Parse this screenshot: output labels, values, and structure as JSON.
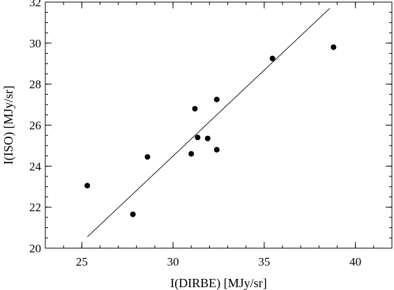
{
  "chart_data": {
    "type": "scatter",
    "title": "",
    "xlabel": "I(DIRBE) [MJy/sr]",
    "ylabel": "I(ISO) [MJy/sr]",
    "xlim": [
      23.0,
      42.0
    ],
    "ylim": [
      20.0,
      32.0
    ],
    "x_ticks": [
      25,
      30,
      35,
      40
    ],
    "y_ticks": [
      20,
      22,
      24,
      26,
      28,
      30,
      32
    ],
    "x_minor_step": 1,
    "y_minor_step": 0.5,
    "grid": false,
    "points": [
      {
        "x": 25.3,
        "y": 23.05
      },
      {
        "x": 27.8,
        "y": 21.65
      },
      {
        "x": 28.6,
        "y": 24.45
      },
      {
        "x": 31.0,
        "y": 24.6
      },
      {
        "x": 31.2,
        "y": 26.8
      },
      {
        "x": 31.35,
        "y": 25.4
      },
      {
        "x": 31.9,
        "y": 25.35
      },
      {
        "x": 32.4,
        "y": 27.25
      },
      {
        "x": 32.4,
        "y": 24.8
      },
      {
        "x": 35.45,
        "y": 29.25
      },
      {
        "x": 38.8,
        "y": 29.8
      }
    ],
    "fit_line": {
      "x": [
        25.3,
        38.6
      ],
      "y": [
        20.55,
        31.7
      ]
    },
    "colors": {
      "points": "#000000",
      "line": "#000000",
      "axes": "#000000"
    }
  }
}
